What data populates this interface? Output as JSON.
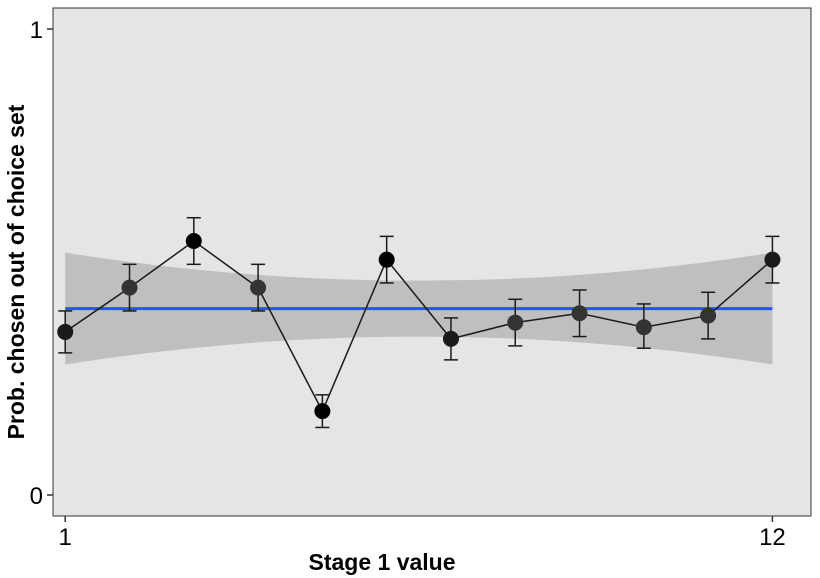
{
  "chart_data": {
    "type": "line",
    "title": "",
    "xlabel": "Stage 1 value",
    "ylabel": "Prob. chosen out of choice set",
    "xlim": [
      0.81,
      12.6
    ],
    "ylim": [
      -0.045,
      1.045
    ],
    "x_ticks": [
      1,
      12
    ],
    "x_tick_labels": [
      "1",
      "12"
    ],
    "y_ticks": [
      0,
      1
    ],
    "y_tick_labels": [
      "0",
      "1"
    ],
    "grid": false,
    "panel_color": "#e5e5e5",
    "series": [
      {
        "x": [
          1,
          2,
          3,
          4,
          5,
          6,
          7,
          8,
          9,
          10,
          11,
          12
        ],
        "y": [
          0.35,
          0.445,
          0.545,
          0.445,
          0.18,
          0.505,
          0.335,
          0.37,
          0.39,
          0.36,
          0.385,
          0.505
        ],
        "ci_low": [
          0.305,
          0.395,
          0.495,
          0.395,
          0.145,
          0.455,
          0.29,
          0.32,
          0.34,
          0.315,
          0.335,
          0.455
        ],
        "ci_high": [
          0.395,
          0.495,
          0.595,
          0.495,
          0.215,
          0.555,
          0.38,
          0.42,
          0.44,
          0.41,
          0.435,
          0.555
        ],
        "point_colors": [
          "#1a1a1a",
          "#333333",
          "#000000",
          "#333333",
          "#000000",
          "#000000",
          "#1a1a1a",
          "#333333",
          "#333333",
          "#333333",
          "#333333",
          "#1a1a1a"
        ],
        "line_color": "#1a1a1a"
      }
    ],
    "trend": {
      "type": "linear-fit",
      "color": "#2a4fff",
      "ribbon_color": "#bfbfbf",
      "x": [
        1,
        6.5,
        12
      ],
      "y": [
        0.4,
        0.4,
        0.4
      ],
      "ci_low": [
        0.28,
        0.34,
        0.28
      ],
      "ci_high": [
        0.52,
        0.46,
        0.52
      ]
    }
  }
}
